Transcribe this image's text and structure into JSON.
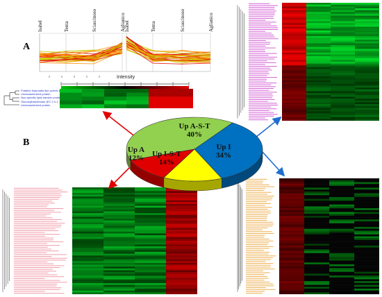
{
  "panels": {
    "a": "A",
    "b": "B"
  },
  "profile_plot": {
    "x_labels_left": [
      "Isabel",
      "Tenta",
      "Sciascinoso",
      "Aglianico"
    ],
    "x_labels_right": [
      "Isabel",
      "Tenta",
      "Sciascinoso",
      "Aglianico"
    ],
    "colors": {
      "high": "#e00000",
      "mid": "#ff8a00",
      "low": "#c8d000"
    }
  },
  "intensity_strip": {
    "title": "Intensity",
    "row_labels": [
      "Putative thaumatin-like protein (F...",
      "Uncharacterized protein",
      "Non-specific lipid-transfer protei...",
      "Glucosyltransferase (EC 2.4.1...)",
      "Uncharacterized protein"
    ]
  },
  "chart_data": {
    "type": "pie",
    "categories": [
      "Up A-S-T",
      "Up I",
      "Up I-S-T",
      "Up A"
    ],
    "values": [
      40,
      34,
      14,
      12
    ],
    "value_labels": [
      "40%",
      "34%",
      "14%",
      "12%"
    ],
    "colors": [
      "#92d050",
      "#0070c0",
      "#ffff00",
      "#e00000"
    ]
  },
  "heatmaps": {
    "top_right": {
      "label_color": "#cc44cc"
    },
    "bottom_left": {
      "label_color": "#ee8899"
    },
    "bottom_right": {
      "label_color": "#e8a030"
    }
  },
  "arrows": {
    "red": "#e00000",
    "blue": "#1f6fd0"
  }
}
